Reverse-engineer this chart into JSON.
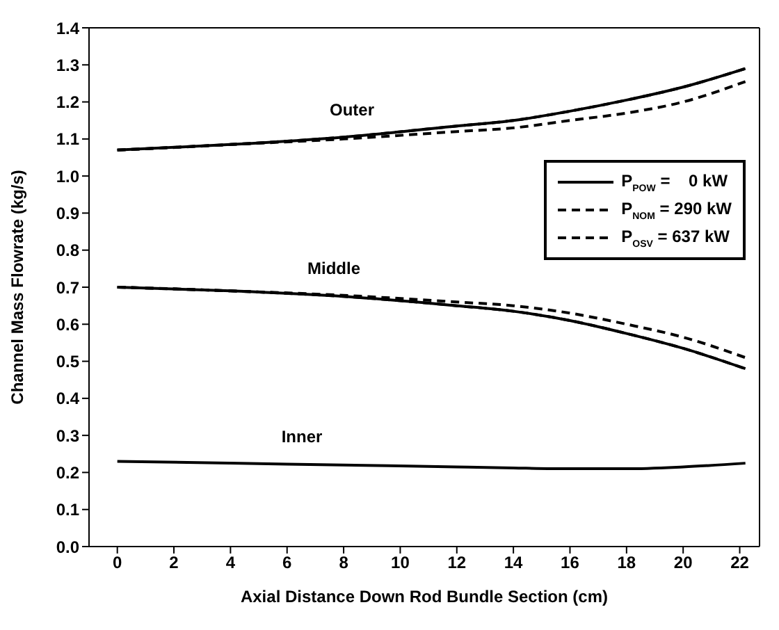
{
  "chart_data": {
    "type": "line",
    "xlabel": "Axial Distance Down Rod Bundle Section (cm)",
    "ylabel": "Channel Mass Flowrate (kg/s)",
    "xlim": [
      -1,
      22.7
    ],
    "xticks": [
      0,
      2,
      4,
      6,
      8,
      10,
      12,
      14,
      16,
      18,
      20,
      22
    ],
    "ylim": [
      0,
      1.4
    ],
    "yticks": [
      {
        "value": 0,
        "label": "0.0"
      },
      0.1,
      0.2,
      0.3,
      0.4,
      0.5,
      0.6,
      0.7,
      0.8,
      0.9,
      {
        "value": 1,
        "label": "1.0"
      },
      1.1,
      1.2,
      1.3,
      1.4
    ],
    "grid": false,
    "legend": "right",
    "marker": "none",
    "x": [
      0,
      4,
      8,
      12,
      14,
      16,
      18,
      20,
      22.2
    ],
    "series": [
      {
        "name": "P$_{POW}$ =    0 kW",
        "color": "#000000",
        "line_style": "solid",
        "values": [
          1.07,
          1.085,
          1.105,
          1.135,
          1.15,
          1.175,
          1.205,
          1.24,
          1.29
        ]
      },
      {
        "name": "P$_{NOM}$ = 290 kW",
        "color": "#000000",
        "line_style": "dashed",
        "values": [
          1.07,
          1.085,
          1.1,
          1.12,
          1.13,
          1.15,
          1.17,
          1.2,
          1.255
        ]
      },
      {
        "name": "P$_{OSV}$ = 637 kW",
        "color": "#000000",
        "line_style": "dashed",
        "values": [
          1.07,
          1.085,
          1.105,
          1.135,
          1.15,
          1.175,
          1.205,
          1.24,
          1.29
        ]
      },
      {
        "color": "#000000",
        "line_style": "solid",
        "values": [
          0.7,
          0.69,
          0.675,
          0.65,
          0.635,
          0.61,
          0.575,
          0.535,
          0.48
        ]
      },
      {
        "color": "#000000",
        "line_style": "dashed",
        "values": [
          0.7,
          0.69,
          0.678,
          0.66,
          0.65,
          0.63,
          0.6,
          0.565,
          0.51
        ]
      },
      {
        "color": "#000000",
        "line_style": "dashed",
        "values": [
          0.7,
          0.69,
          0.675,
          0.65,
          0.635,
          0.61,
          0.575,
          0.535,
          0.48
        ]
      },
      {
        "color": "#000000",
        "line_style": "solid",
        "values": [
          0.23,
          0.225,
          0.22,
          0.215,
          0.212,
          0.21,
          0.21,
          0.215,
          0.225
        ]
      }
    ],
    "annotations": [
      "Outer",
      "Middle",
      "Inner"
    ]
  }
}
